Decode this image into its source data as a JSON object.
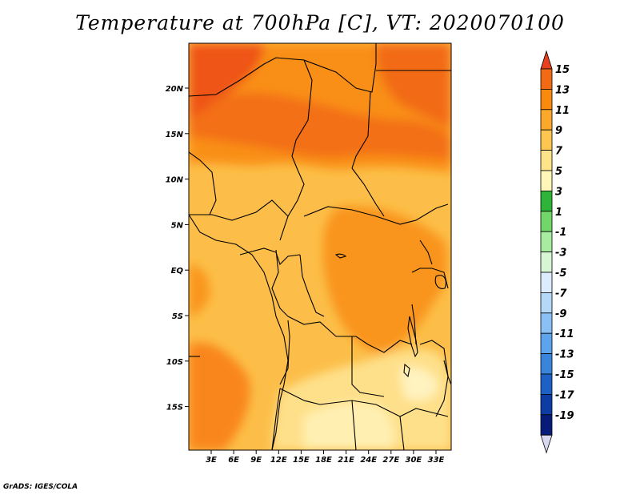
{
  "title": "Temperature at 700hPa [C], VT: 2020070100",
  "credit": "GrADS: IGES/COLA",
  "lat_labels": [
    "20N",
    "15N",
    "10N",
    "5N",
    "EQ",
    "5S",
    "10S",
    "15S"
  ],
  "lon_labels": [
    "3E",
    "6E",
    "9E",
    "12E",
    "15E",
    "18E",
    "21E",
    "24E",
    "27E",
    "30E",
    "33E"
  ],
  "colorbar": {
    "labels": [
      "15",
      "13",
      "11",
      "9",
      "7",
      "5",
      "3",
      "1",
      "-1",
      "-3",
      "-5",
      "-7",
      "-9",
      "-11",
      "-13",
      "-15",
      "-17",
      "-19"
    ],
    "colors": [
      "#e8401f",
      "#f26a14",
      "#f98a0e",
      "#fca82a",
      "#fdc650",
      "#fee38a",
      "#fff6b8",
      "#2fb43a",
      "#72d66a",
      "#a8ecA0",
      "#d6f6d4",
      "#dcecfc",
      "#b4d8f8",
      "#8ac0f4",
      "#5ea4ec",
      "#3a84dc",
      "#1e60c4",
      "#0c3ca4",
      "#061c78",
      "#d8d8f0"
    ]
  }
}
